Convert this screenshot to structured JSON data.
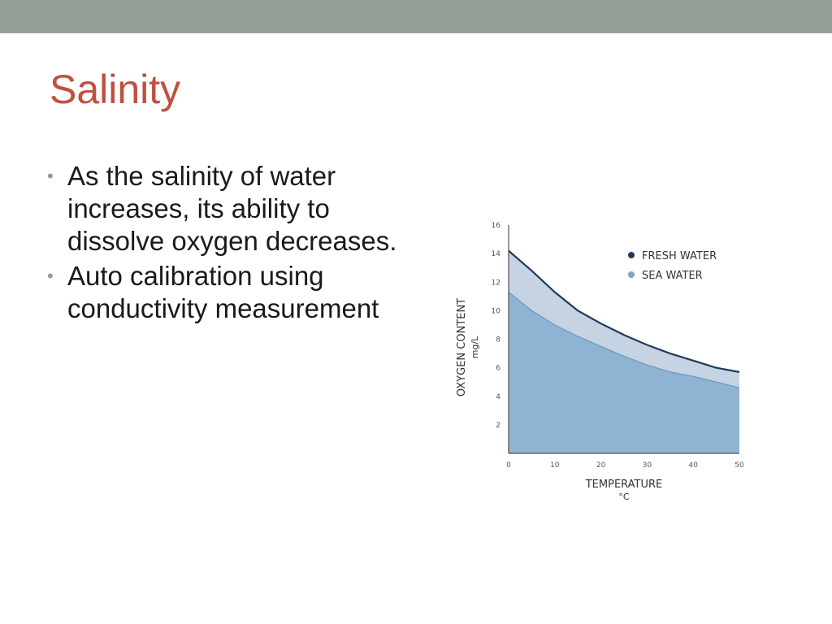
{
  "slide": {
    "title": "Salinity",
    "bullets": [
      "As the salinity of water increases, its ability to dissolve oxygen decreases.",
      "Auto calibration using conductivity measurement"
    ],
    "colors": {
      "top_bar": "#949f96",
      "title": "#c0503f",
      "bullet_dot": "#8f9a92"
    }
  },
  "chart_data": {
    "type": "area",
    "xlabel": "TEMPERATURE",
    "xlabel_unit": "°C",
    "ylabel": "OXYGEN CONTENT",
    "ylabel_unit": "mg/L",
    "xlim": [
      0,
      50
    ],
    "ylim": [
      0,
      16
    ],
    "x_ticks": [
      0,
      10,
      20,
      30,
      40,
      50
    ],
    "y_ticks": [
      2,
      4,
      6,
      8,
      10,
      12,
      14,
      16
    ],
    "legend_position": "top-right",
    "grid": false,
    "x": [
      0,
      5,
      10,
      15,
      20,
      25,
      30,
      35,
      40,
      45,
      50
    ],
    "series": [
      {
        "name": "FRESH WATER",
        "color": "#1f3a5a",
        "fill": "#c5d3e2",
        "values": [
          14.2,
          12.8,
          11.3,
          10.0,
          9.1,
          8.3,
          7.6,
          7.0,
          6.5,
          6.0,
          5.7
        ]
      },
      {
        "name": "SEA WATER",
        "color": "#7fa6c9",
        "fill": "#8fb3d3",
        "values": [
          11.3,
          10.0,
          9.0,
          8.2,
          7.5,
          6.8,
          6.2,
          5.7,
          5.4,
          5.0,
          4.6
        ]
      }
    ]
  }
}
